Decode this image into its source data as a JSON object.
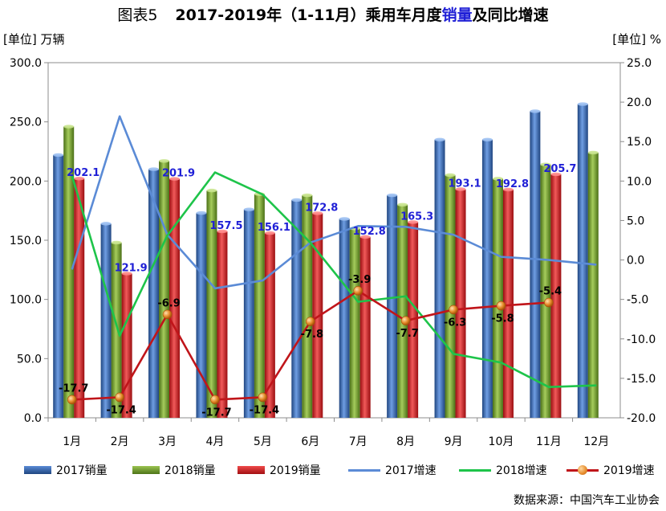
{
  "header": {
    "figure_label": "图表5",
    "title_part1": "2017-2019年（1-11月）乘用车月度",
    "title_highlight": "销量",
    "title_part2": "及同比增速"
  },
  "units": {
    "left": "[单位] 万辆",
    "right": "[单位] %"
  },
  "legend": {
    "s2017": "2017销量",
    "s2018": "2018销量",
    "s2019": "2019销量",
    "g2017": "2017增速",
    "g2018": "2018增速",
    "g2019": "2019增速"
  },
  "source": "数据来源：中国汽车工业协会",
  "colors": {
    "bar2017": "#2e5ea6",
    "bar2018": "#6f9a2e",
    "bar2019": "#d3151a",
    "line2017": "#5b8bd6",
    "line2018": "#1ec44a",
    "line2019": "#c0151a",
    "marker2019": "#e58a2a",
    "label_volume": "#1f1fd6"
  },
  "chart_data": {
    "type": "bar",
    "categories": [
      "1月",
      "2月",
      "3月",
      "4月",
      "5月",
      "6月",
      "7月",
      "8月",
      "9月",
      "10月",
      "11月",
      "12月"
    ],
    "series": [
      {
        "name": "2017销量",
        "axis": "left",
        "values": [
          222,
          164,
          210,
          173,
          176,
          184,
          168,
          188,
          235,
          235,
          259,
          265
        ]
      },
      {
        "name": "2018销量",
        "axis": "left",
        "values": [
          246,
          148,
          217,
          192,
          189,
          188,
          160,
          180,
          205,
          202,
          214,
          224
        ]
      },
      {
        "name": "2019销量",
        "axis": "left",
        "values": [
          202.1,
          121.9,
          201.9,
          157.5,
          156.1,
          172.8,
          152.8,
          165.3,
          193.1,
          192.8,
          205.7,
          null
        ],
        "data_labels": [
          "202.1",
          "121.9",
          "201.9",
          "157.5",
          "156.1",
          "172.8",
          "152.8",
          "165.3",
          "193.1",
          "192.8",
          "205.7",
          ""
        ]
      }
    ],
    "lines": [
      {
        "name": "2017增速",
        "axis": "right",
        "values": [
          -1.2,
          18.2,
          3.2,
          -3.6,
          -2.6,
          2.2,
          4.3,
          4.2,
          3.2,
          0.4,
          0.0,
          -0.6
        ]
      },
      {
        "name": "2018增速",
        "axis": "right",
        "values": [
          10.7,
          -9.6,
          3.1,
          11.1,
          8.3,
          2.2,
          -5.3,
          -4.6,
          -11.9,
          -13.0,
          -16.1,
          -15.9
        ]
      },
      {
        "name": "2019增速",
        "axis": "right",
        "values": [
          -17.7,
          -17.4,
          -6.9,
          -17.7,
          -17.4,
          -7.8,
          -3.9,
          -7.7,
          -6.3,
          -5.8,
          -5.4,
          null
        ],
        "data_labels": [
          "-17.7",
          "-17.4",
          "-6.9",
          "-17.7",
          "-17.4",
          "-7.8",
          "-3.9",
          "-7.7",
          "-6.3",
          "-5.8",
          "-5.4",
          ""
        ]
      }
    ],
    "y_left": {
      "min": 0,
      "max": 300,
      "step": 50,
      "ticks": [
        "0.0",
        "50.0",
        "100.0",
        "150.0",
        "200.0",
        "250.0",
        "300.0"
      ]
    },
    "y_right": {
      "min": -20,
      "max": 25,
      "step": 5,
      "ticks": [
        "-20.0",
        "-15.0",
        "-10.0",
        "-5.0",
        "0.0",
        "5.0",
        "10.0",
        "15.0",
        "20.0",
        "25.0"
      ]
    },
    "grid": false,
    "legend_position": "bottom"
  }
}
